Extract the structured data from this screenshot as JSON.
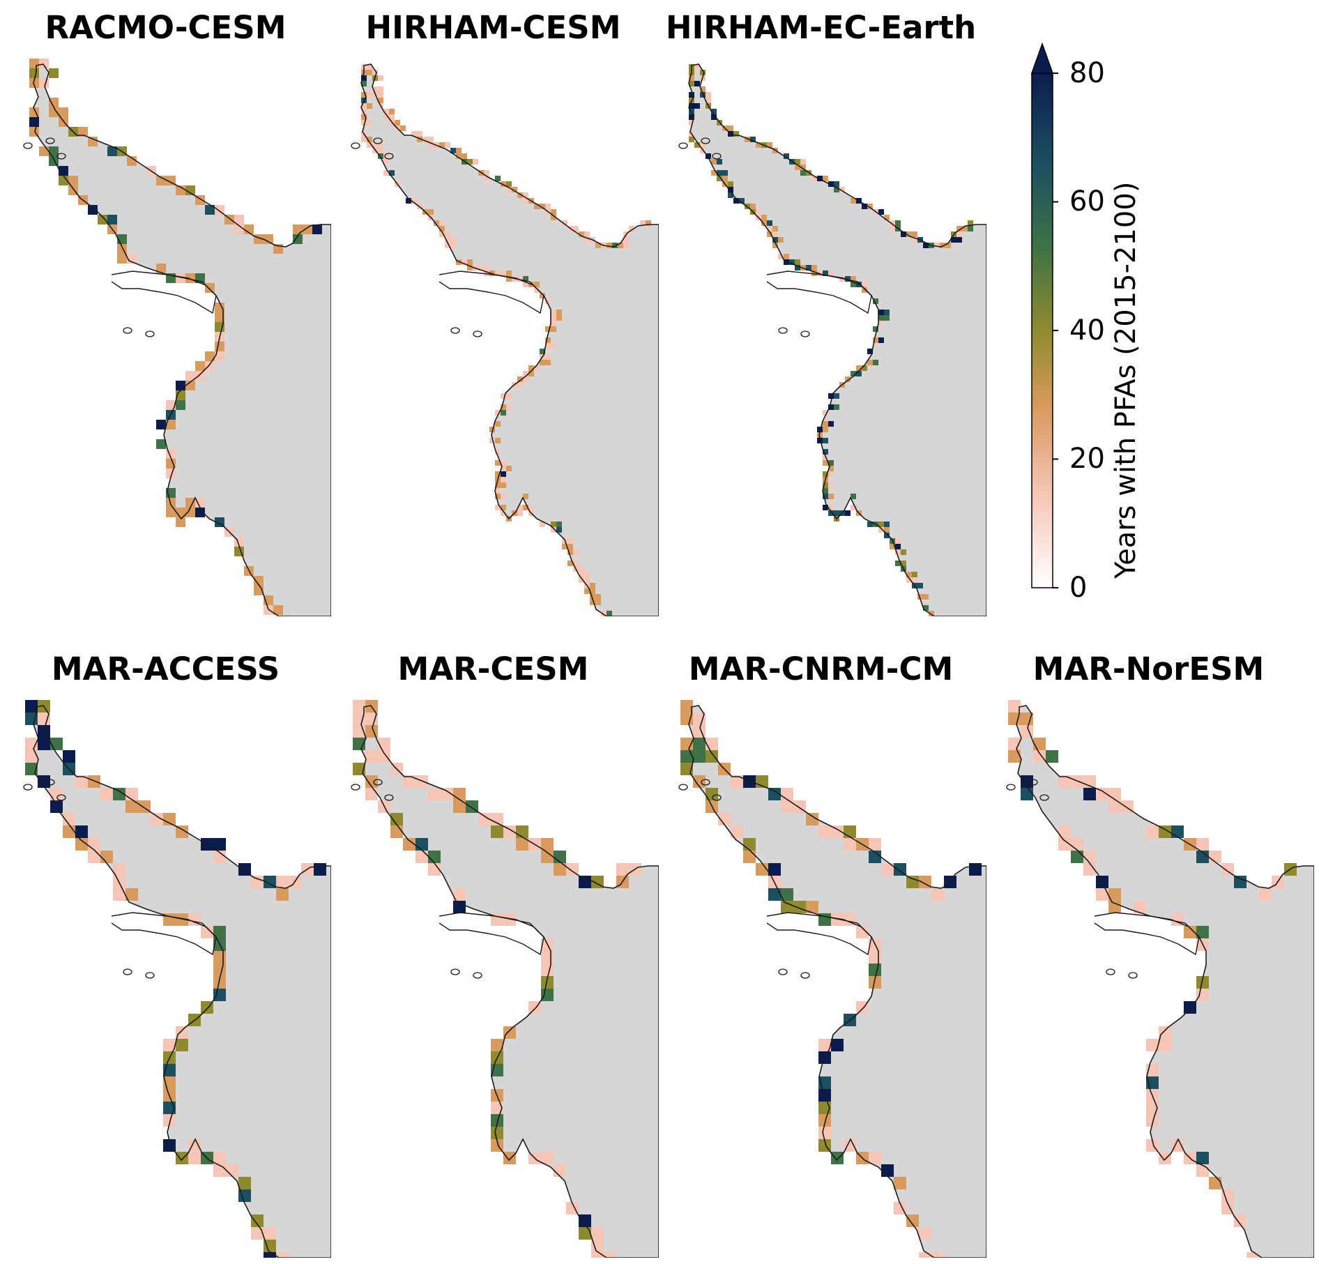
{
  "colors": {
    "land": "#d6d6d6",
    "coast": "#1a1a1a",
    "colormap": [
      "#ffffff",
      "#f6c5b6",
      "#d99a5e",
      "#8f8a2e",
      "#3f7246",
      "#1c5061",
      "#0b1d4f"
    ]
  },
  "colorbar": {
    "label": "Years with PFAs (2015-2100)",
    "ticks": [
      "0",
      "20",
      "40",
      "60",
      "80"
    ],
    "range": [
      0,
      80
    ],
    "extend": "max"
  },
  "panels": [
    {
      "title": "RACMO-CESM",
      "style": "racmo"
    },
    {
      "title": "HIRHAM-CESM",
      "style": "hirham"
    },
    {
      "title": "HIRHAM-EC-Earth",
      "style": "hirhamec"
    },
    {
      "title": "MAR-ACCESS",
      "style": "mar-access"
    },
    {
      "title": "MAR-CESM",
      "style": "mar-cesm"
    },
    {
      "title": "MAR-CNRM-CM",
      "style": "mar-cnrm"
    },
    {
      "title": "MAR-NorESM",
      "style": "mar-noresm"
    }
  ]
}
